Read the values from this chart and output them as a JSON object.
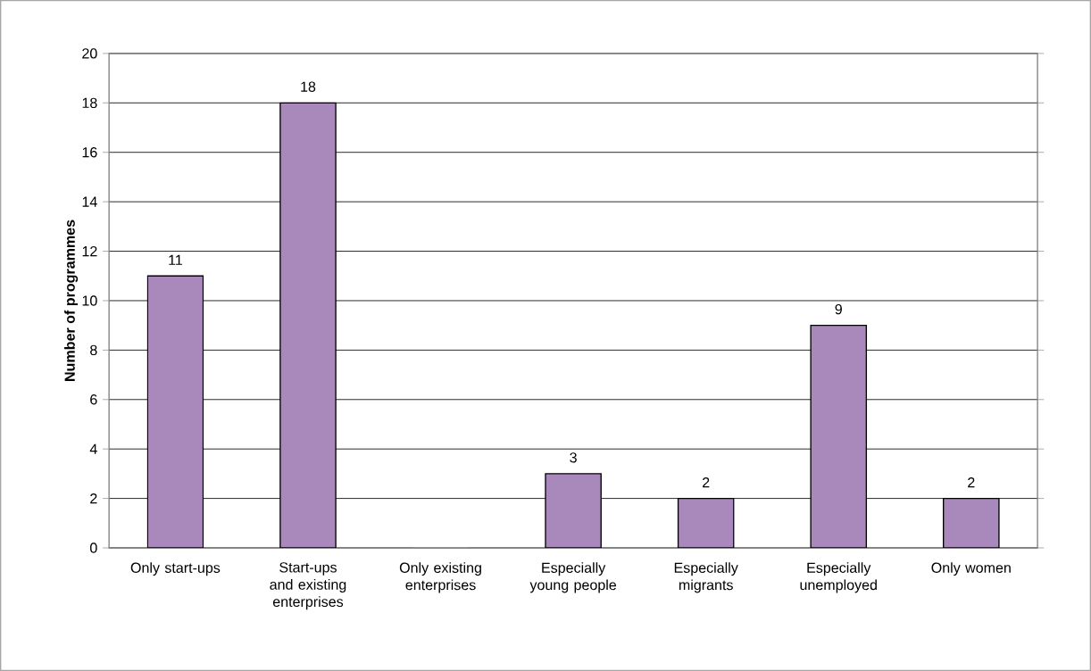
{
  "chart_data": {
    "type": "bar",
    "ylabel": "Number of programmes",
    "categories": [
      "Only start-ups",
      "Start-ups and existing enterprises",
      "Only existing enterprises",
      "Especially young people",
      "Especially migrants",
      "Especially unemployed",
      "Only women"
    ],
    "values": [
      11,
      18,
      0,
      3,
      2,
      9,
      2
    ],
    "value_labels": [
      "11",
      "18",
      null,
      "3",
      "2",
      "9",
      "2"
    ],
    "color": "#a988bb",
    "ylim": [
      0,
      20
    ],
    "yticks": [
      0,
      2,
      4,
      6,
      8,
      10,
      12,
      14,
      16,
      18,
      20
    ],
    "grid": "y"
  }
}
